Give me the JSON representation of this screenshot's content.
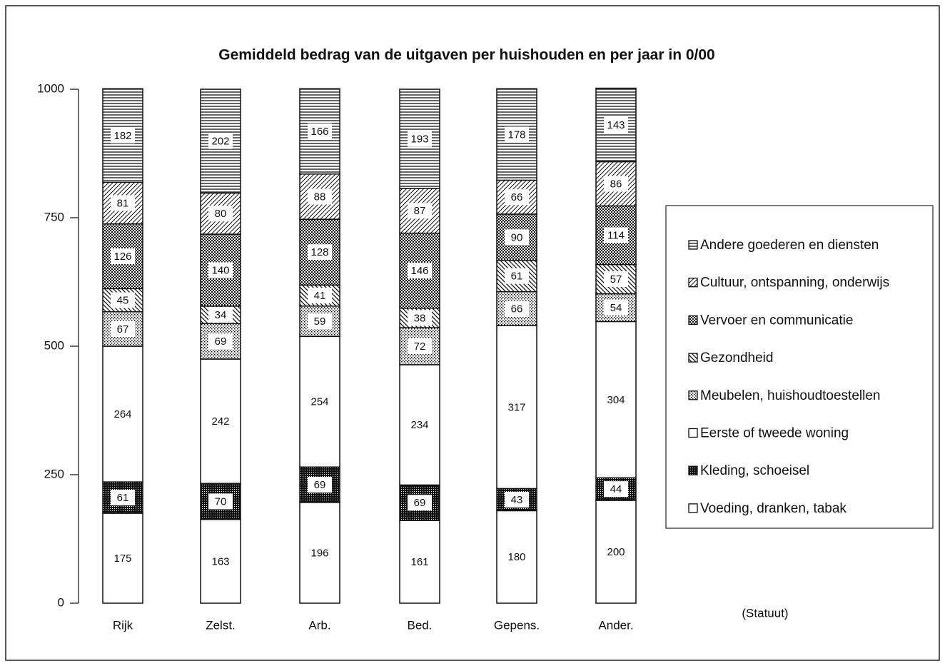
{
  "chart_data": {
    "type": "stacked-bar",
    "title": "Gemiddeld bedrag van de uitgaven per huishouden en per jaar in 0/00",
    "x_label": "(Statuut)",
    "categories": [
      "Rijk",
      "Zelst.",
      "Arb.",
      "Bed.",
      "Gepens.",
      "Ander."
    ],
    "ylim": [
      0,
      1000
    ],
    "yticks": [
      0,
      250,
      500,
      750,
      1000
    ],
    "series": [
      {
        "name": "Voeding, dranken, tabak",
        "color": "#111111",
        "pattern": "none",
        "values": [
          175,
          163,
          196,
          161,
          180,
          200
        ]
      },
      {
        "name": "Kleding, schoeisel",
        "color": "#111111",
        "pattern": "dense-checks",
        "values": [
          61,
          70,
          69,
          69,
          43,
          44
        ]
      },
      {
        "name": "Eerste of tweede woning",
        "color": "#111111",
        "pattern": "none",
        "values": [
          264,
          242,
          254,
          234,
          317,
          304
        ]
      },
      {
        "name": "Meubelen, huishoudtoestellen",
        "color": "#111111",
        "pattern": "dots",
        "values": [
          67,
          69,
          59,
          72,
          66,
          54
        ]
      },
      {
        "name": "Gezondheid",
        "color": "#111111",
        "pattern": "diagonal-back",
        "values": [
          45,
          34,
          41,
          38,
          61,
          57
        ]
      },
      {
        "name": "Vervoer en communicatie",
        "color": "#111111",
        "pattern": "checks",
        "values": [
          126,
          140,
          128,
          146,
          90,
          114
        ]
      },
      {
        "name": "Cultuur, ontspanning, onderwijs",
        "color": "#111111",
        "pattern": "diagonal",
        "values": [
          81,
          80,
          88,
          87,
          66,
          86
        ]
      },
      {
        "name": "Andere goederen en diensten",
        "color": "#111111",
        "pattern": "horizontal",
        "values": [
          182,
          202,
          166,
          193,
          178,
          143
        ]
      }
    ]
  }
}
